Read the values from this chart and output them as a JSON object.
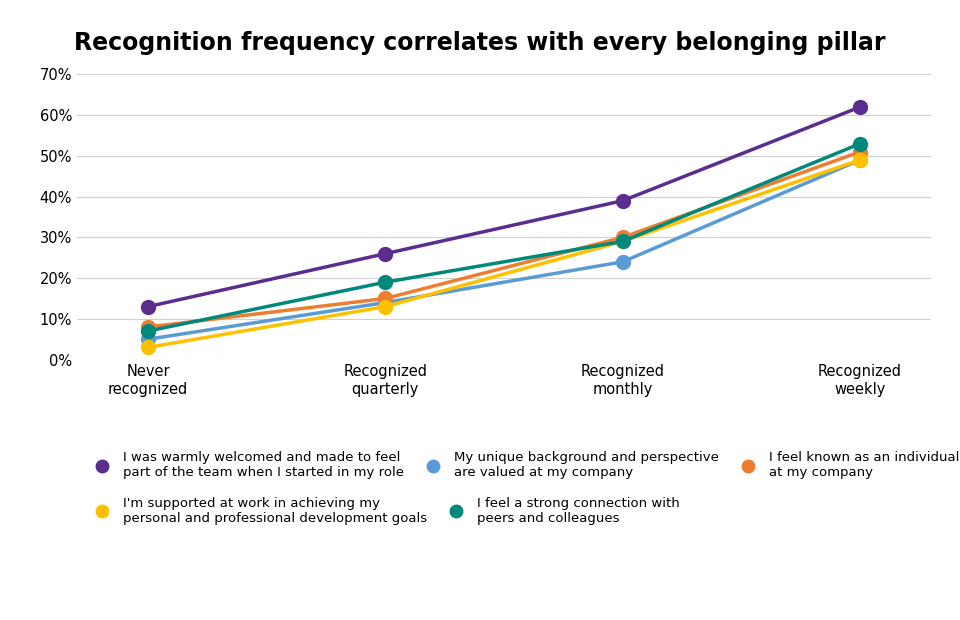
{
  "title": "Recognition frequency correlates with every belonging pillar",
  "x_labels": [
    "Never\nrecognized",
    "Recognized\nquarterly",
    "Recognized\nmonthly",
    "Recognized\nweekly"
  ],
  "x_values": [
    0,
    1,
    2,
    3
  ],
  "ylim": [
    0,
    0.7
  ],
  "yticks": [
    0.0,
    0.1,
    0.2,
    0.3,
    0.4,
    0.5,
    0.6,
    0.7
  ],
  "series": [
    {
      "label": "I was warmly welcomed and made to feel\npart of the team when I started in my role",
      "color": "#5b2d8e",
      "values": [
        0.13,
        0.26,
        0.39,
        0.62
      ],
      "linewidth": 2.5,
      "markersize": 10
    },
    {
      "label": "My unique background and perspective\nare valued at my company",
      "color": "#5b9bd5",
      "values": [
        0.05,
        0.14,
        0.24,
        0.49
      ],
      "linewidth": 2.5,
      "markersize": 10
    },
    {
      "label": "I feel known as an individual\nat my company",
      "color": "#ed7d31",
      "values": [
        0.08,
        0.15,
        0.3,
        0.51
      ],
      "linewidth": 2.5,
      "markersize": 10
    },
    {
      "label": "I'm supported at work in achieving my\npersonal and professional development goals",
      "color": "#ffc000",
      "values": [
        0.03,
        0.13,
        0.29,
        0.49
      ],
      "linewidth": 2.5,
      "markersize": 10
    },
    {
      "label": "I feel a strong connection with\npeers and colleagues",
      "color": "#00897b",
      "values": [
        0.07,
        0.19,
        0.29,
        0.53
      ],
      "linewidth": 2.5,
      "markersize": 10
    }
  ],
  "legend_order": [
    0,
    1,
    2,
    3,
    4
  ],
  "background_color": "#ffffff",
  "grid_color": "#d0d0d0",
  "title_fontsize": 17,
  "tick_fontsize": 10.5,
  "legend_fontsize": 9.5
}
